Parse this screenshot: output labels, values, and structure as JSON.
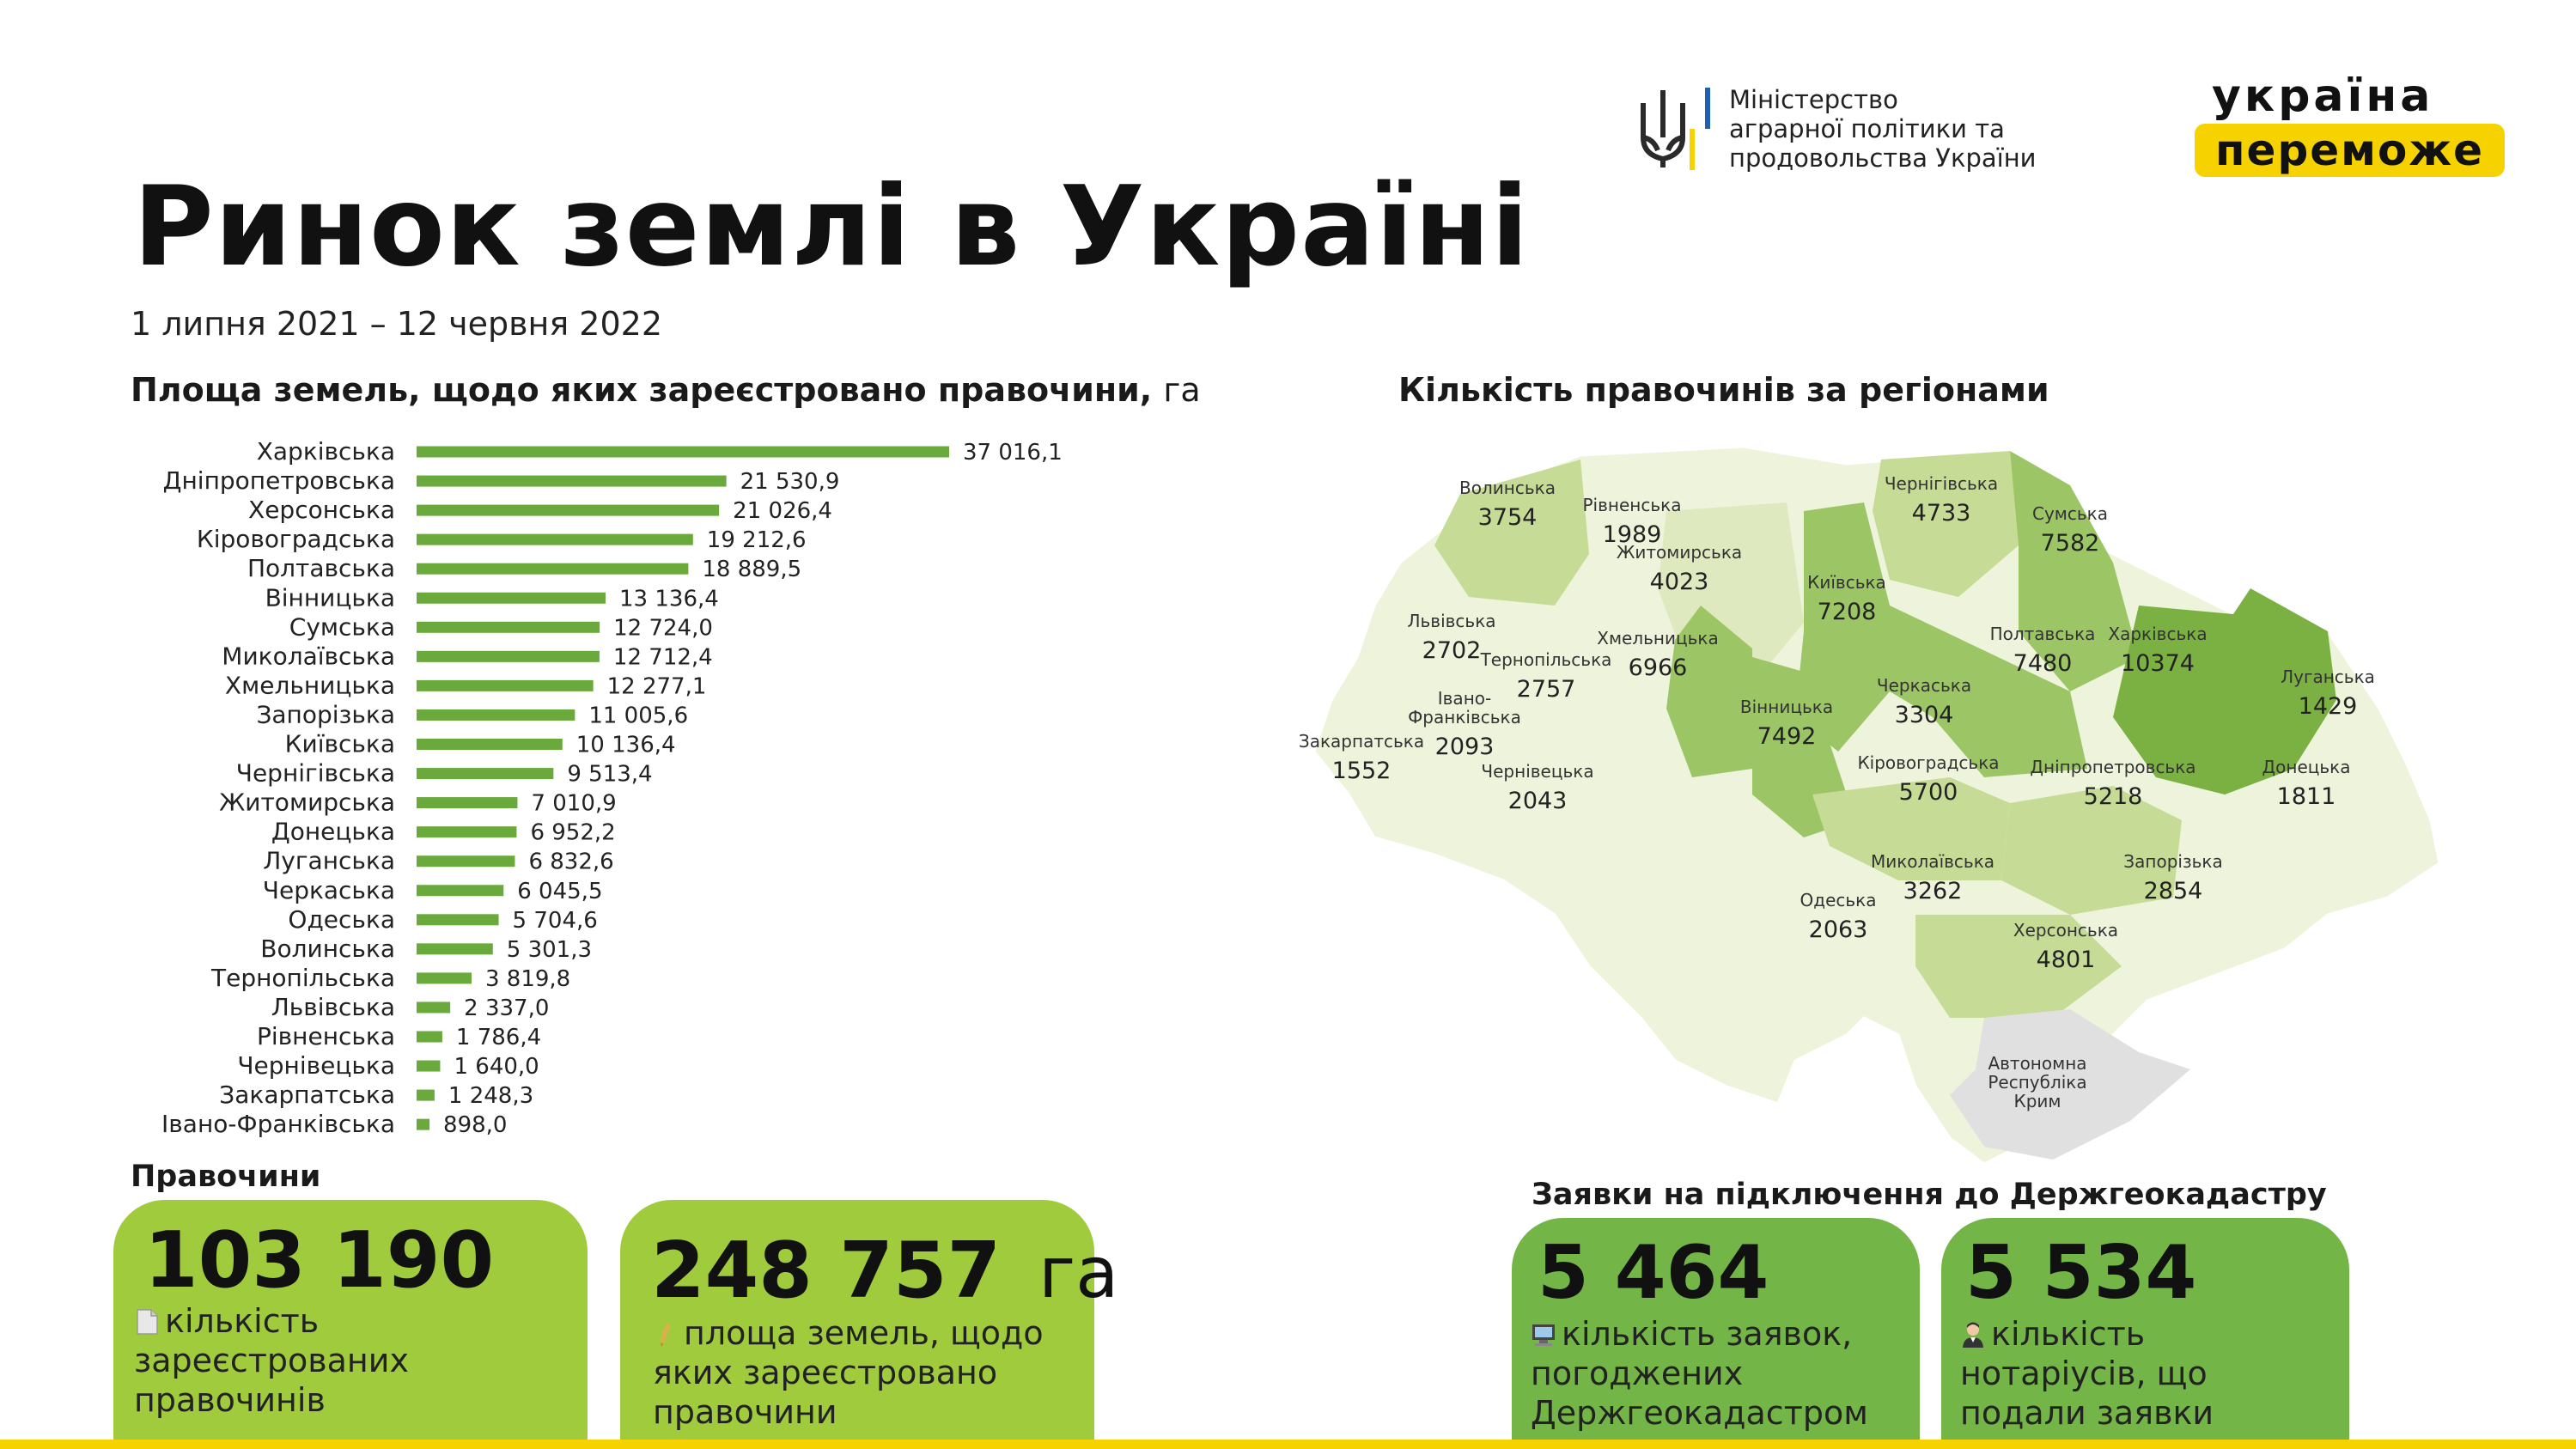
{
  "header": {
    "title": "Ринок землі в Україні",
    "period": "1 липня 2021 – 12 червня 2022",
    "ministry_lines": [
      "Міністерство",
      "аграрної політики та",
      "продовольства України"
    ],
    "slogan_line1": "україна",
    "slogan_line2": "переможе"
  },
  "colors": {
    "bar": "#6aaa3c",
    "card_light": "#9fcb3c",
    "card_dark": "#74b548",
    "accent_yellow": "#f5d200",
    "map_shades": [
      "#eef4dc",
      "#dfe9bf",
      "#c6dc96",
      "#9cc666",
      "#7bb143",
      "#e0e0e0"
    ]
  },
  "chart_data": [
    {
      "type": "bar",
      "orientation": "horizontal",
      "title": "Площа земель, щодо яких зареєстровано правочини,",
      "unit": "га",
      "categories": [
        "Харківська",
        "Дніпропетровська",
        "Херсонська",
        "Кіровоградська",
        "Полтавська",
        "Вінницька",
        "Сумська",
        "Миколаївська",
        "Хмельницька",
        "Запорізька",
        "Київська",
        "Чернігівська",
        "Житомирська",
        "Донецька",
        "Луганська",
        "Черкаська",
        "Одеська",
        "Волинська",
        "Тернопільська",
        "Львівська",
        "Рівненська",
        "Чернівецька",
        "Закарпатська",
        "Івано-Франківська"
      ],
      "values": [
        37016.1,
        21530.9,
        21026.4,
        19212.6,
        18889.5,
        13136.4,
        12724.0,
        12712.4,
        12277.1,
        11005.6,
        10136.4,
        9513.4,
        7010.9,
        6952.2,
        6832.6,
        6045.5,
        5704.6,
        5301.3,
        3819.8,
        2337.0,
        1786.4,
        1640.0,
        1248.3,
        898.0
      ],
      "value_labels": [
        "37 016,1",
        "21 530,9",
        "21 026,4",
        "19 212,6",
        "18 889,5",
        "13 136,4",
        "12 724,0",
        "12 712,4",
        "12 277,1",
        "11 005,6",
        "10 136,4",
        "9 513,4",
        "7 010,9",
        "6 952,2",
        "6 832,6",
        "6 045,5",
        "5 704,6",
        "5 301,3",
        "3 819,8",
        "2 337,0",
        "1 786,4",
        "1 640,0",
        "1 248,3",
        "898,0"
      ]
    },
    {
      "type": "choropleth",
      "title": "Кількість правочинів за регіонами",
      "regions": [
        {
          "name": "Волинська",
          "value": "3754",
          "shade": 2
        },
        {
          "name": "Рівненська",
          "value": "1989",
          "shade": 0
        },
        {
          "name": "Житомирська",
          "value": "4023",
          "shade": 1
        },
        {
          "name": "Чернігівська",
          "value": "4733",
          "shade": 2
        },
        {
          "name": "Сумська",
          "value": "7582",
          "shade": 3
        },
        {
          "name": "Київська",
          "value": "7208",
          "shade": 3
        },
        {
          "name": "Львівська",
          "value": "2702",
          "shade": 1
        },
        {
          "name": "Хмельницька",
          "value": "6966",
          "shade": 3
        },
        {
          "name": "Тернопільська",
          "value": "2757",
          "shade": 1
        },
        {
          "name": "Івано-Франківська",
          "value": "2093",
          "shade": 1
        },
        {
          "name": "Закарпатська",
          "value": "1552",
          "shade": 0
        },
        {
          "name": "Чернівецька",
          "value": "2043",
          "shade": 0
        },
        {
          "name": "Вінницька",
          "value": "7492",
          "shade": 3
        },
        {
          "name": "Черкаська",
          "value": "3304",
          "shade": 1
        },
        {
          "name": "Полтавська",
          "value": "7480",
          "shade": 3
        },
        {
          "name": "Харківська",
          "value": "10374",
          "shade": 4
        },
        {
          "name": "Луганська",
          "value": "1429",
          "shade": 0
        },
        {
          "name": "Кіровоградська",
          "value": "5700",
          "shade": 2
        },
        {
          "name": "Дніпропетровська",
          "value": "5218",
          "shade": 2
        },
        {
          "name": "Донецька",
          "value": "1811",
          "shade": 0
        },
        {
          "name": "Одеська",
          "value": "2063",
          "shade": 0
        },
        {
          "name": "Миколаївська",
          "value": "3262",
          "shade": 1
        },
        {
          "name": "Запорізька",
          "value": "2854",
          "shade": 1
        },
        {
          "name": "Херсонська",
          "value": "4801",
          "shade": 2
        },
        {
          "name": "Автономна Республіка Крим",
          "value": "",
          "shade": 5
        }
      ]
    }
  ],
  "deals": {
    "heading": "Правочини",
    "count_value": "103 190",
    "count_desc": [
      "кількість",
      "зареєстрованих",
      "правочинів"
    ],
    "area_value": "248 757",
    "area_unit": "га",
    "area_desc": [
      "площа земель, щодо",
      "яких зареєстровано",
      "правочини"
    ]
  },
  "applications": {
    "heading": "Заявки на підключення до Держгеокадастру",
    "approved_value": "5 464",
    "approved_desc": [
      "кількість заявок,",
      "погоджених",
      "Держгеокадастром"
    ],
    "notaries_value": "5 534",
    "notaries_desc": [
      "кількість",
      "нотаріусів, що",
      "подали заявки"
    ]
  }
}
